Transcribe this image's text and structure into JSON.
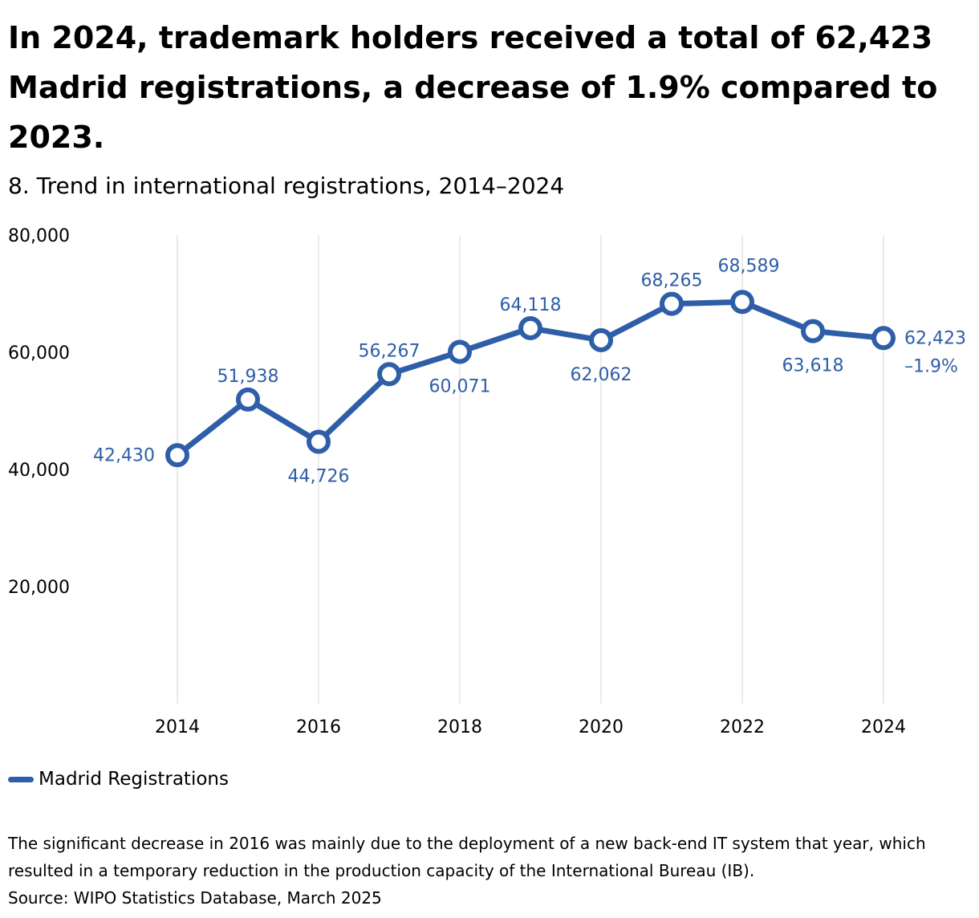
{
  "header": {
    "headline": "In 2024, trademark holders received a total of 62,423 Madrid registrations, a decrease of 1.9% compared to 2023.",
    "subtitle": "8. Trend in international registrations, 2014–2024"
  },
  "chart_data": {
    "type": "line",
    "title": "8. Trend in international registrations, 2014–2024",
    "xlabel": "",
    "ylabel": "",
    "x": [
      2014,
      2015,
      2016,
      2017,
      2018,
      2019,
      2020,
      2021,
      2022,
      2023,
      2024
    ],
    "series": [
      {
        "name": "Madrid Registrations",
        "color": "#2e5ea8",
        "values": [
          42430,
          51938,
          44726,
          56267,
          60071,
          64118,
          62062,
          68265,
          68589,
          63618,
          62423
        ],
        "labels": [
          "42,430",
          "51,938",
          "44,726",
          "56,267",
          "60,071",
          "64,118",
          "62,062",
          "68,265",
          "68,589",
          "63,618",
          "62,423"
        ]
      }
    ],
    "annotations": [
      {
        "x": 2024,
        "text": "–1.9%"
      }
    ],
    "xticks": [
      2014,
      2016,
      2018,
      2020,
      2022,
      2024
    ],
    "xtick_labels": [
      "2014",
      "2016",
      "2018",
      "2020",
      "2022",
      "2024"
    ],
    "yticks": [
      20000,
      40000,
      60000,
      80000
    ],
    "ytick_labels": [
      "20,000",
      "40,000",
      "60,000",
      "80,000"
    ],
    "ylim": [
      0,
      80000
    ],
    "xlim": [
      2013,
      2025
    ],
    "grid": "vertical",
    "legend": "bottom-left"
  },
  "legend": {
    "label": "Madrid Registrations",
    "color": "#2e5ea8"
  },
  "notes": {
    "note": "The significant decrease in 2016 was mainly due to the deployment of a new back-end IT system that year, which resulted in a temporary reduction in the production capacity of the International Bureau (IB).",
    "source": "Source: WIPO Statistics Database, March 2025"
  }
}
